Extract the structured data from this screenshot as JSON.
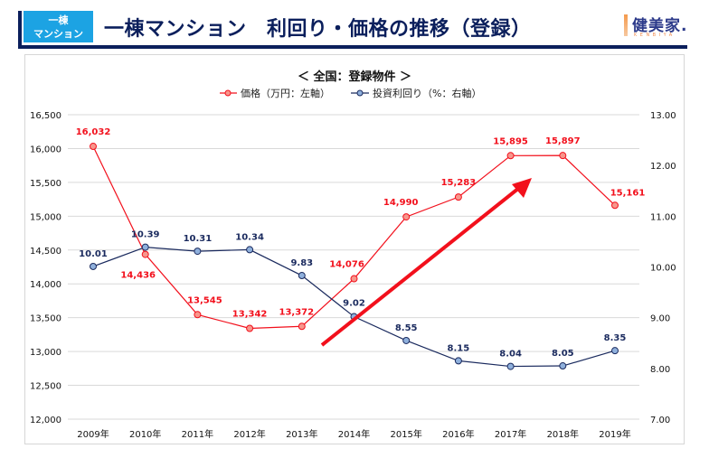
{
  "header": {
    "badge_line1": "一棟",
    "badge_line2": "マンション",
    "title": "一棟マンション　利回り・価格の推移（登録）",
    "logo_text": "健美家.",
    "logo_sub": "KENBIYA"
  },
  "colors": {
    "header_navy": "#0b1f5c",
    "badge_blue": "#1ca3e3",
    "price_line": "#f2101c",
    "price_marker": "#f7968c",
    "yield_line": "#1a2a5e",
    "yield_marker": "#8fb0dc",
    "arrow": "#f2101c"
  },
  "chart_data": {
    "type": "line",
    "title": "＜ 全国：登録物件 ＞",
    "categories": [
      "2009年",
      "2010年",
      "2011年",
      "2012年",
      "2013年",
      "2014年",
      "2015年",
      "2016年",
      "2017年",
      "2018年",
      "2019年"
    ],
    "series": [
      {
        "name": "価格（万円：左軸）",
        "axis": "left",
        "values": [
          16032,
          14436,
          13545,
          13342,
          13372,
          14076,
          14990,
          15283,
          15895,
          15897,
          15161
        ],
        "labels": [
          "16,032",
          "14,436",
          "13,545",
          "13,342",
          "13,372",
          "14,076",
          "14,990",
          "15,283",
          "15,895",
          "15,897",
          "15,161"
        ]
      },
      {
        "name": "投資利回り（%：右軸）",
        "axis": "right",
        "values": [
          10.01,
          10.39,
          10.31,
          10.34,
          9.83,
          9.02,
          8.55,
          8.15,
          8.04,
          8.05,
          8.35
        ],
        "labels": [
          "10.01",
          "10.39",
          "10.31",
          "10.34",
          "9.83",
          "9.02",
          "8.55",
          "8.15",
          "8.04",
          "8.05",
          "8.35"
        ]
      }
    ],
    "left_axis": {
      "ylim": [
        12000,
        16500
      ],
      "ticks": [
        "16,500",
        "16,000",
        "15,500",
        "15,000",
        "14,500",
        "14,000",
        "13,500",
        "13,000",
        "12,500",
        "12,000"
      ]
    },
    "right_axis": {
      "ylim": [
        7,
        13
      ],
      "ticks": [
        "13.00",
        "12.00",
        "11.00",
        "10.00",
        "9.00",
        "8.00",
        "7.00"
      ]
    },
    "grid": true,
    "legend": "top-center",
    "annotation": "upward trend arrow from 2013 to 2017"
  }
}
